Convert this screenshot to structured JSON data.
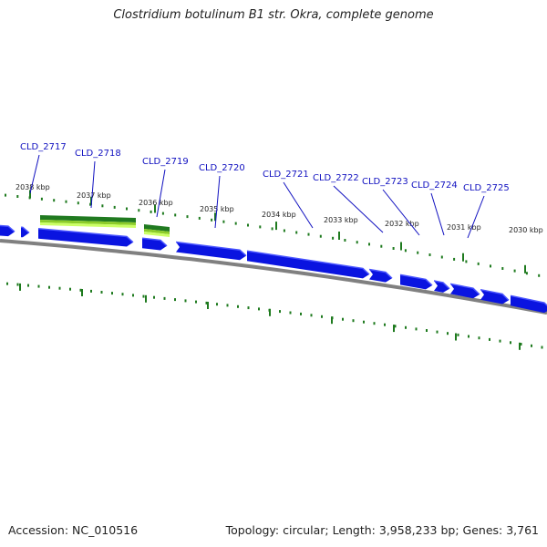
{
  "title": "Clostridium botulinum B1 str. Okra, complete genome",
  "footer": {
    "accession": "Accession: NC_010516",
    "summary": "Topology: circular; Length: 3,958,233 bp; Genes: 3,761"
  },
  "colors": {
    "gene_arrow": "#0a14e0",
    "gene_arrow_light": "#4a55ff",
    "backbone": "#808080",
    "tick": "#1e7a1e",
    "gene_label": "#1010c0",
    "leader_line": "#1010c0",
    "scale_text": "#222222",
    "highlight_dark": "#207a20",
    "highlight_mid": "#8ccc2a",
    "highlight_light": "#ccff66"
  },
  "scale_labels": [
    "2038 kbp",
    "2037 kbp",
    "2036 kbp",
    "2035 kbp",
    "2034 kbp",
    "2033 kbp",
    "2032 kbp",
    "2031 kbp",
    "2030 kbp"
  ],
  "gene_labels": [
    "CLD_2717",
    "CLD_2718",
    "CLD_2719",
    "CLD_2720",
    "CLD_2721",
    "CLD_2722",
    "CLD_2723",
    "CLD_2724",
    "CLD_2725"
  ]
}
